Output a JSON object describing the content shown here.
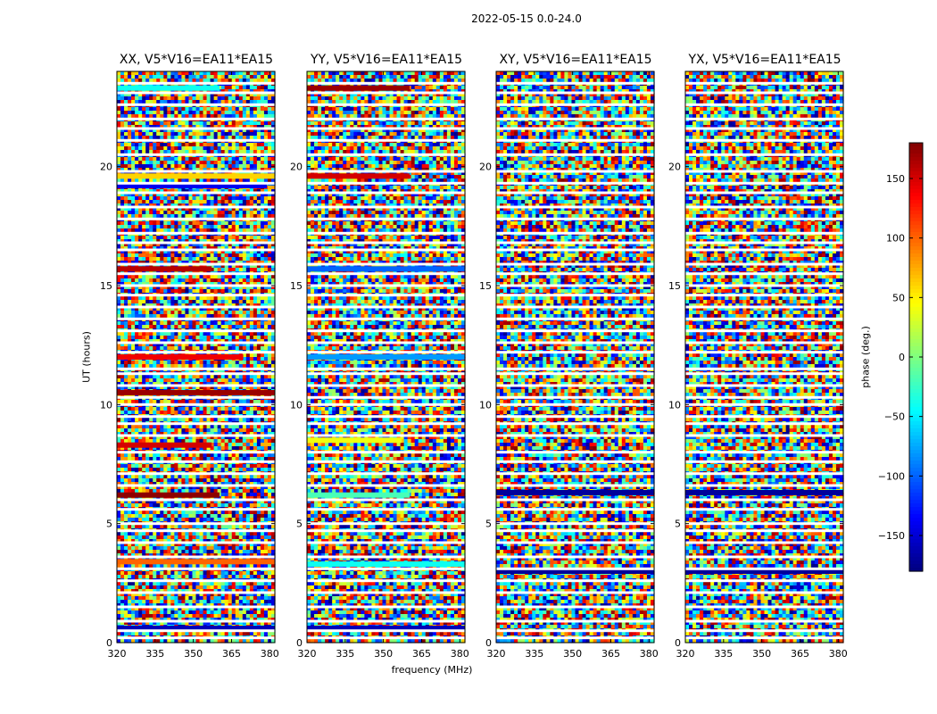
{
  "figure_title": "2022-05-15 0.0-24.0",
  "colors": {
    "frame": "#000000",
    "colormap": [
      "#00007f",
      "#0000ff",
      "#007fff",
      "#00ffff",
      "#7fff7f",
      "#ffff00",
      "#ff7f00",
      "#ff0000",
      "#7f0000"
    ]
  },
  "chart_data": [
    {
      "type": "heatmap",
      "title": "XX, V5*V16=EA11*EA15",
      "xlabel": "frequency (MHz)",
      "ylabel": "UT (hours)",
      "xlim": [
        320,
        382
      ],
      "ylim": [
        0,
        24
      ],
      "xticks": [
        "320",
        "335",
        "350",
        "365",
        "380"
      ],
      "yticks": [
        "0",
        "5",
        "10",
        "15",
        "20"
      ],
      "coherent_rows": [
        {
          "ut": 23.3,
          "phase": -40,
          "extent": 0.65
        },
        {
          "ut": 19.2,
          "phase": -140,
          "extent": 0.95
        },
        {
          "ut": 19.6,
          "phase": 60,
          "extent": 1.0
        },
        {
          "ut": 15.7,
          "phase": 160,
          "extent": 0.6
        },
        {
          "ut": 12.0,
          "phase": 140,
          "extent": 0.8
        },
        {
          "ut": 10.5,
          "phase": 170,
          "extent": 1.0
        },
        {
          "ut": 8.3,
          "phase": 150,
          "extent": 0.6
        },
        {
          "ut": 6.2,
          "phase": 175,
          "extent": 0.65
        },
        {
          "ut": 3.4,
          "phase": 100,
          "extent": 1.0
        },
        {
          "ut": 0.6,
          "phase": -160,
          "extent": 1.0
        }
      ]
    },
    {
      "type": "heatmap",
      "title": "YY, V5*V16=EA11*EA15",
      "xlabel": "frequency (MHz)",
      "ylabel": "",
      "xlim": [
        320,
        382
      ],
      "ylim": [
        0,
        24
      ],
      "xticks": [
        "320",
        "335",
        "350",
        "365",
        "380"
      ],
      "yticks": [
        "0",
        "5",
        "10",
        "15",
        "20"
      ],
      "coherent_rows": [
        {
          "ut": 23.3,
          "phase": 170,
          "extent": 0.65
        },
        {
          "ut": 19.6,
          "phase": 150,
          "extent": 0.65
        },
        {
          "ut": 15.7,
          "phase": -100,
          "extent": 1.0
        },
        {
          "ut": 12.0,
          "phase": -80,
          "extent": 1.0
        },
        {
          "ut": 8.5,
          "phase": 40,
          "extent": 0.6
        },
        {
          "ut": 6.2,
          "phase": -20,
          "extent": 0.65
        },
        {
          "ut": 3.3,
          "phase": -40,
          "extent": 1.0
        },
        {
          "ut": 0.6,
          "phase": -160,
          "extent": 1.0
        }
      ]
    },
    {
      "type": "heatmap",
      "title": "XY, V5*V16=EA11*EA15",
      "xlabel": "frequency (MHz)",
      "ylabel": "",
      "xlim": [
        320,
        382
      ],
      "ylim": [
        0,
        24
      ],
      "xticks": [
        "320",
        "335",
        "350",
        "365",
        "380"
      ],
      "yticks": [
        "0",
        "5",
        "10",
        "15",
        "20"
      ],
      "coherent_rows": [
        {
          "ut": 6.3,
          "phase": -170,
          "extent": 1.0
        },
        {
          "ut": 3.0,
          "phase": -170,
          "extent": 1.0
        }
      ]
    },
    {
      "type": "heatmap",
      "title": "YX, V5*V16=EA11*EA15",
      "xlabel": "frequency (MHz)",
      "ylabel": "",
      "xlim": [
        320,
        382
      ],
      "ylim": [
        0,
        24
      ],
      "xticks": [
        "320",
        "335",
        "350",
        "365",
        "380"
      ],
      "yticks": [
        "0",
        "5",
        "10",
        "15",
        "20"
      ],
      "coherent_rows": [
        {
          "ut": 6.3,
          "phase": -170,
          "extent": 1.0
        },
        {
          "ut": 3.0,
          "phase": -170,
          "extent": 1.0
        }
      ]
    }
  ],
  "colorbar": {
    "label": "phase (deg.)",
    "range": [
      -180,
      180
    ],
    "ticks": [
      "150",
      "100",
      "50",
      "0",
      "−50",
      "−100",
      "−150"
    ],
    "tick_values": [
      150,
      100,
      50,
      0,
      -50,
      -100,
      -150
    ]
  },
  "flagged_ut_hours": [
    0.2,
    0.5,
    0.9,
    1.5,
    2.1,
    2.6,
    3.1,
    3.6,
    4.2,
    4.7,
    5.0,
    5.6,
    6.0,
    6.6,
    7.1,
    7.6,
    8.0,
    8.7,
    9.2,
    9.5,
    10.0,
    10.3,
    10.8,
    11.3,
    11.5,
    12.2,
    12.6,
    13.1,
    13.6,
    14.1,
    14.6,
    15.0,
    15.5,
    15.9,
    16.5,
    16.8,
    17.2,
    17.8,
    18.3,
    18.9,
    19.3,
    19.8,
    20.5,
    21.1,
    21.6,
    22.0,
    22.6,
    23.1,
    23.5
  ]
}
